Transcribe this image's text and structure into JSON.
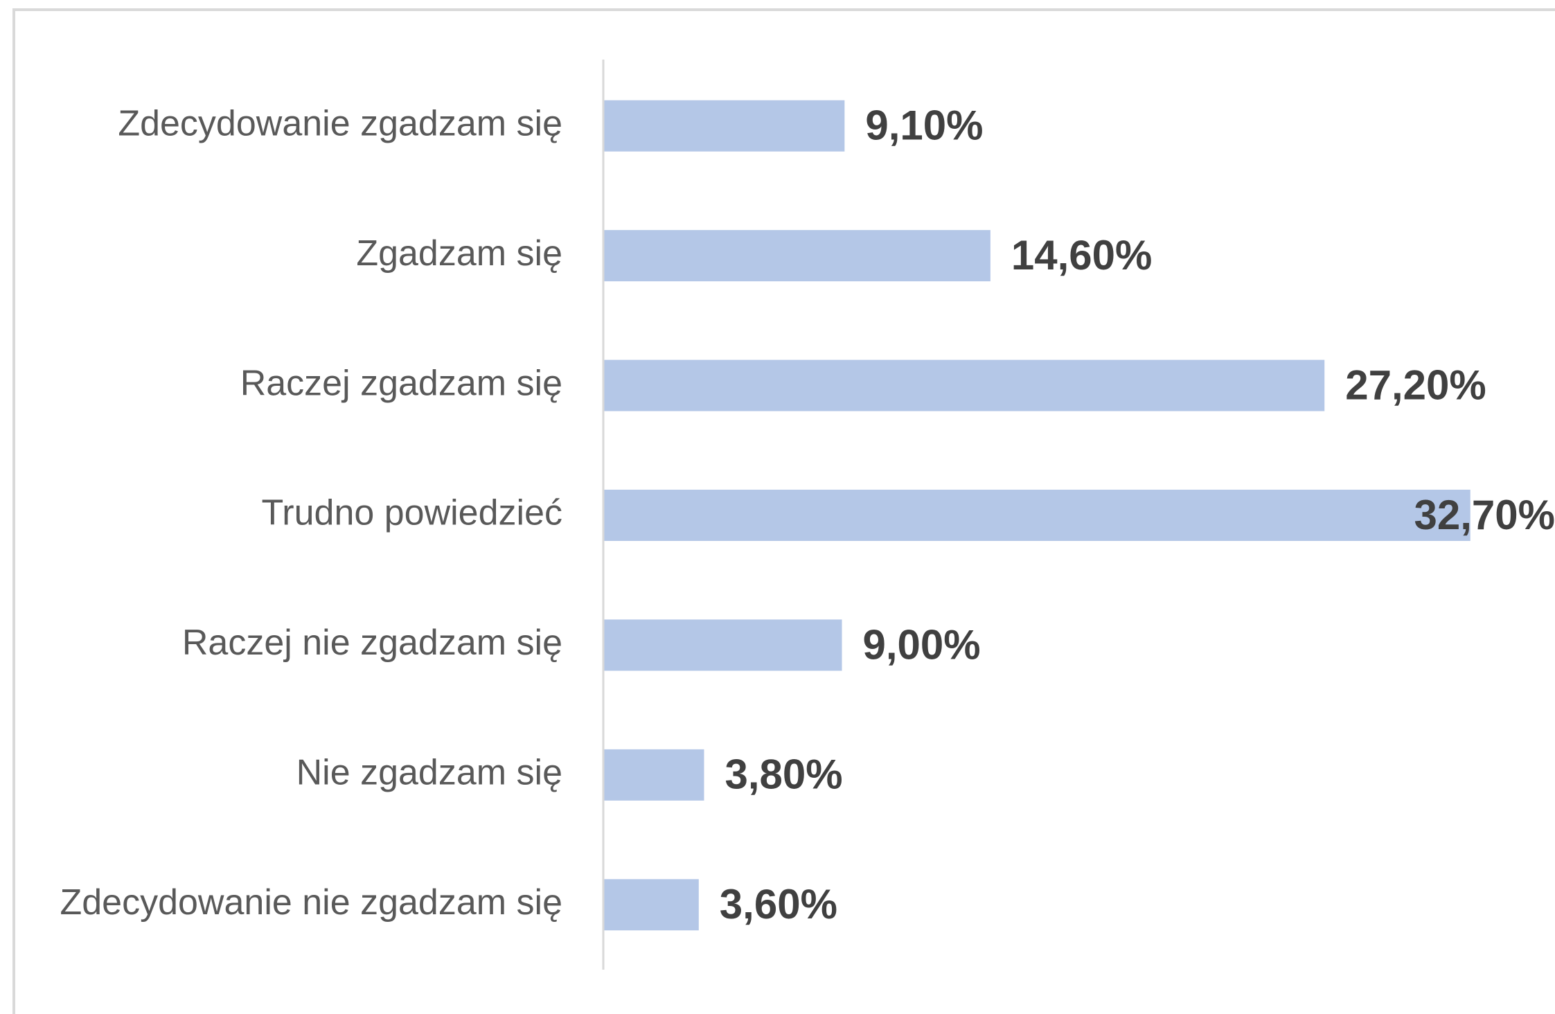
{
  "chart_data": {
    "type": "barh",
    "categories": [
      "Zdecydowanie zgadzam się",
      "Zgadzam się",
      "Raczej zgadzam się",
      "Trudno powiedzieć",
      "Raczej nie zgadzam się",
      "Nie zgadzam się",
      "Zdecydowanie nie zgadzam się"
    ],
    "values": [
      9.1,
      14.6,
      27.2,
      32.7,
      9.0,
      3.8,
      3.6
    ],
    "value_labels": [
      "9,10%",
      "14,60%",
      "27,20%",
      "32,70%",
      "9,00%",
      "3,80%",
      "3,60%"
    ],
    "color": "#b4c7e7",
    "xlim": [
      0,
      35
    ]
  }
}
